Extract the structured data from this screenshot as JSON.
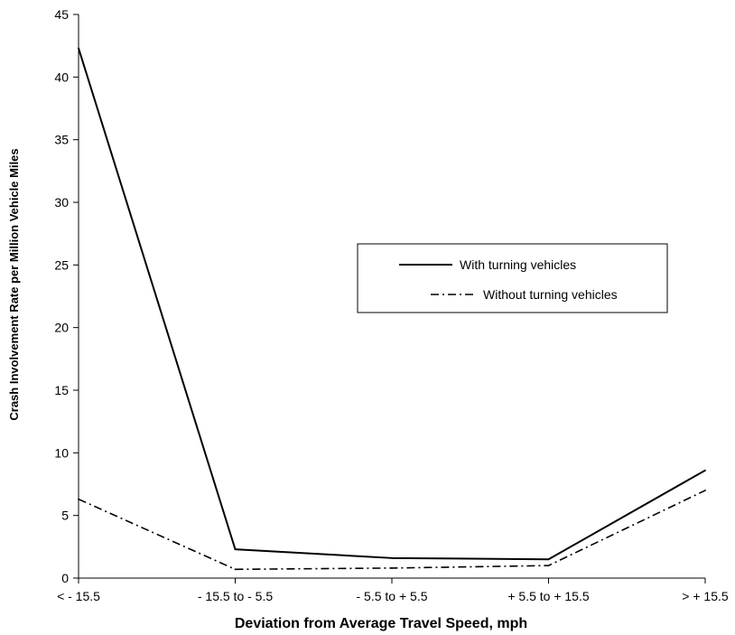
{
  "chart_data": {
    "type": "line",
    "categories": [
      "< - 15.5",
      "- 15.5 to - 5.5",
      "- 5.5 to + 5.5",
      "+ 5.5 to + 15.5",
      "> + 15.5"
    ],
    "series": [
      {
        "name": "With turning vehicles",
        "values": [
          42.3,
          2.3,
          1.6,
          1.5,
          8.6
        ],
        "line_style": "solid",
        "color": "#000000"
      },
      {
        "name": "Without turning vehicles",
        "values": [
          6.3,
          0.7,
          0.8,
          1.0,
          7.0
        ],
        "line_style": "dash-dot",
        "color": "#000000"
      }
    ],
    "yticks": [
      "0",
      "5",
      "10",
      "15",
      "20",
      "25",
      "30",
      "35",
      "40",
      "45"
    ],
    "xlabel": "Deviation from Average Travel Speed, mph",
    "ylabel": "Crash Involvement Rate per Million Vehicle Miles",
    "ylim": [
      0,
      45
    ],
    "grid": false,
    "legend_position": "right"
  }
}
